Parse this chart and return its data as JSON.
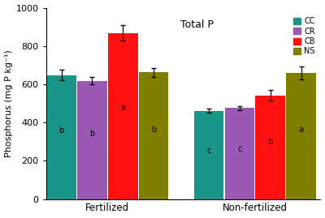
{
  "title": "Total P",
  "ylabel": "Phosphorus (mg P kg⁻¹)",
  "groups": [
    "Fertilized",
    "Non-fertilized"
  ],
  "categories": [
    "CC",
    "CR",
    "CB",
    "NS"
  ],
  "colors": [
    "#1a9688",
    "#9b59b6",
    "#ff1111",
    "#808000"
  ],
  "values": [
    [
      648,
      618,
      868,
      662
    ],
    [
      462,
      475,
      542,
      660
    ]
  ],
  "errors": [
    [
      28,
      18,
      40,
      22
    ],
    [
      12,
      10,
      28,
      35
    ]
  ],
  "letters": [
    [
      "b",
      "b",
      "a",
      "b"
    ],
    [
      "c",
      "c",
      "b",
      "a"
    ]
  ],
  "ylim": [
    0,
    1000
  ],
  "yticks": [
    0,
    200,
    400,
    600,
    800,
    1000
  ],
  "bar_width": 0.15,
  "background_color": "#ffffff"
}
